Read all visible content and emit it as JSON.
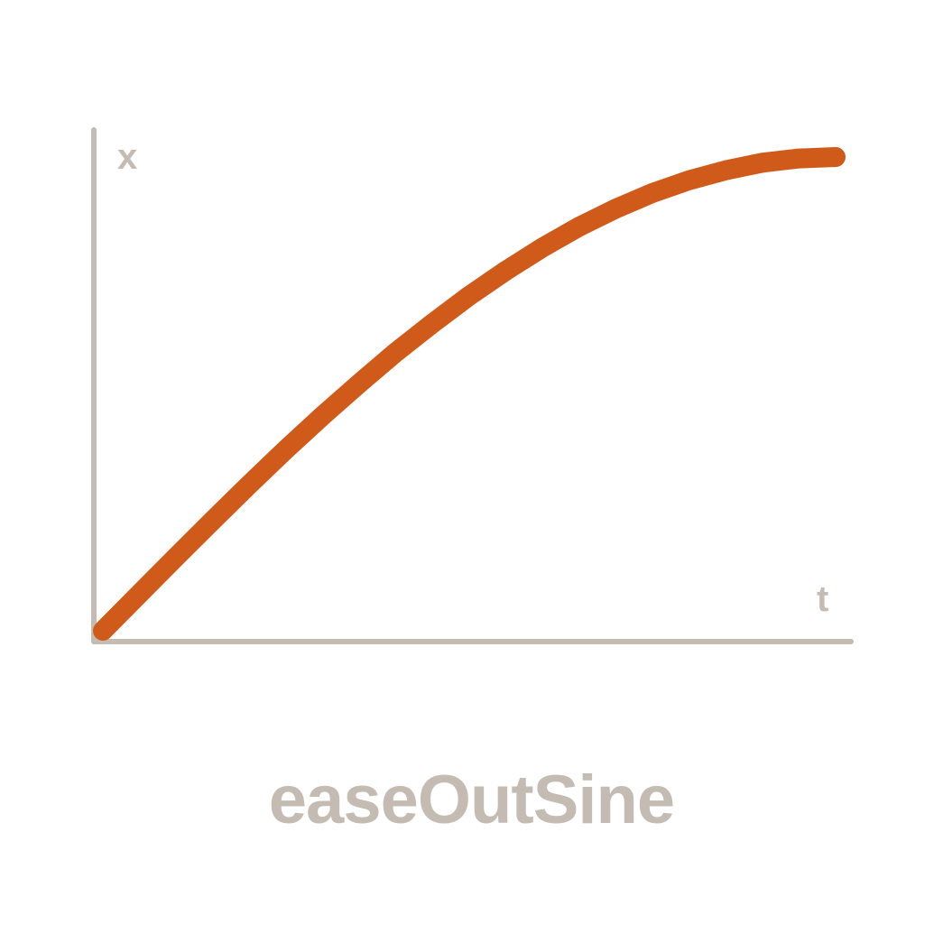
{
  "chart_data": {
    "type": "line",
    "title": "easeOutSine",
    "xlabel": "t",
    "ylabel": "x",
    "xlim": [
      0,
      1
    ],
    "ylim": [
      0,
      1
    ],
    "grid": false,
    "legend": "none",
    "series": [
      {
        "x": [
          0,
          0.05,
          0.1,
          0.15,
          0.2,
          0.25,
          0.3,
          0.35,
          0.4,
          0.45,
          0.5,
          0.55,
          0.6,
          0.65,
          0.7,
          0.75,
          0.8,
          0.85,
          0.9,
          0.95,
          1.0
        ],
        "values": [
          0,
          0.078,
          0.156,
          0.233,
          0.309,
          0.383,
          0.454,
          0.522,
          0.588,
          0.649,
          0.707,
          0.76,
          0.809,
          0.853,
          0.891,
          0.924,
          0.951,
          0.972,
          0.988,
          0.997,
          1.0
        ]
      }
    ]
  },
  "colors": {
    "axis": "#c4bcb3",
    "curve": "#cf5a1a",
    "text": "#c4bcb3",
    "background": "#ffffff"
  }
}
